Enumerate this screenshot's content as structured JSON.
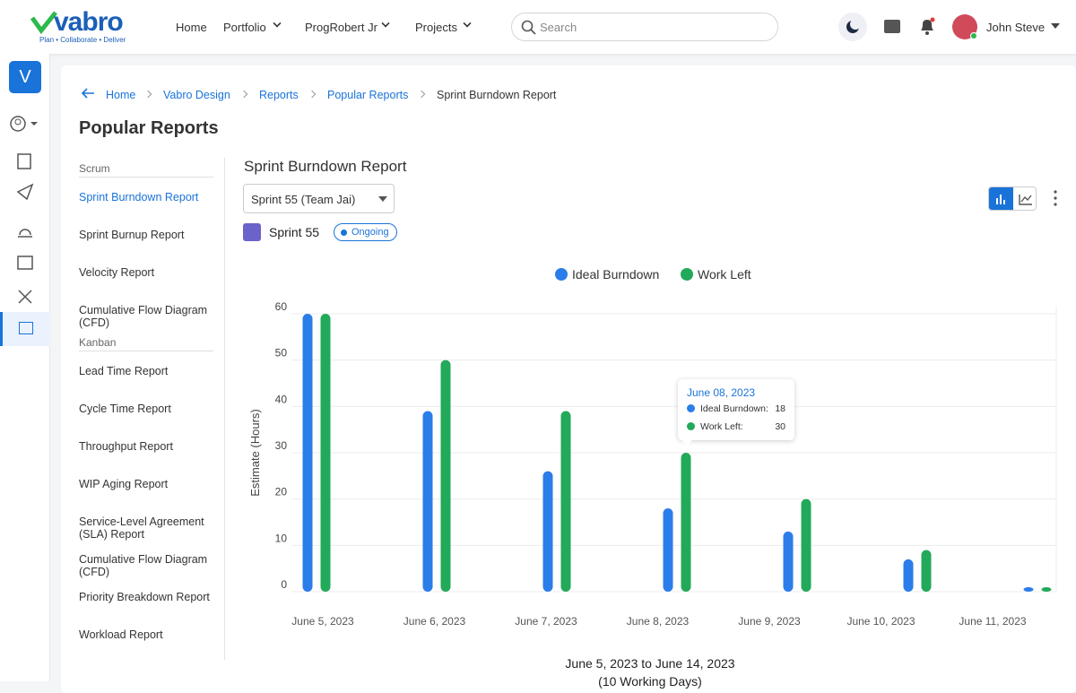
{
  "nav": {
    "logo": "vabro",
    "tagline": "Plan • Collaborate • Deliver",
    "items": [
      "Home",
      "Portfolio",
      "ProgRobert Jr",
      "Projects"
    ],
    "search_placeholder": "Search",
    "user": "John Steve"
  },
  "sidebar": {
    "badge": "V"
  },
  "breadcrumb": [
    "Home",
    "Vabro Design",
    "Reports",
    "Popular Reports",
    "Sprint Burndown Report"
  ],
  "page_title": "Popular Reports",
  "menu": {
    "groups": [
      {
        "title": "Scrum",
        "items": [
          "Sprint Burndown Report",
          "Sprint Burnup Report",
          "Velocity Report",
          "Cumulative Flow Diagram (CFD)"
        ]
      },
      {
        "title": "Kanban",
        "items": [
          "Lead Time Report",
          "Cycle Time Report",
          "Throughput Report",
          "WIP Aging Report",
          "Service-Level Agreement (SLA) Report",
          "Cumulative Flow Diagram (CFD)",
          "Priority Breakdown Report",
          "Workload Report"
        ]
      }
    ]
  },
  "report": {
    "title": "Sprint Burndown Report",
    "sprint_select": "Sprint 55 (Team Jai)",
    "sprint": "Sprint 55",
    "status": "Ongoing",
    "chart": {
      "type": "bar",
      "y_label": "Estimate (Hours)",
      "categories": [
        "June 5, 2023",
        "June 6, 2023",
        "June 7, 2023",
        "June 8, 2023",
        "June 9, 2023",
        "June 10, 2023",
        "June 11, 2023"
      ],
      "series": [
        {
          "name": "Ideal Burndown",
          "color": "#2b7de9",
          "values": [
            60,
            39,
            26,
            18,
            13,
            7,
            0
          ]
        },
        {
          "name": "Work Left",
          "color": "#22a95a",
          "values": [
            60,
            50,
            39,
            30,
            20,
            9,
            0
          ]
        }
      ],
      "ylim": [
        0,
        60
      ],
      "yticks": [
        0,
        10,
        20,
        30,
        40,
        50,
        60
      ],
      "grid": true,
      "legend": "top"
    },
    "tooltip": {
      "title": "June 08, 2023",
      "rows": [
        {
          "label": "Ideal Burndown:",
          "value": 18
        },
        {
          "label": "Work Left:",
          "value": 30
        }
      ]
    },
    "footer": "June 5, 2023 to June 14, 2023",
    "footer_sub": "(10 Working Days)"
  }
}
